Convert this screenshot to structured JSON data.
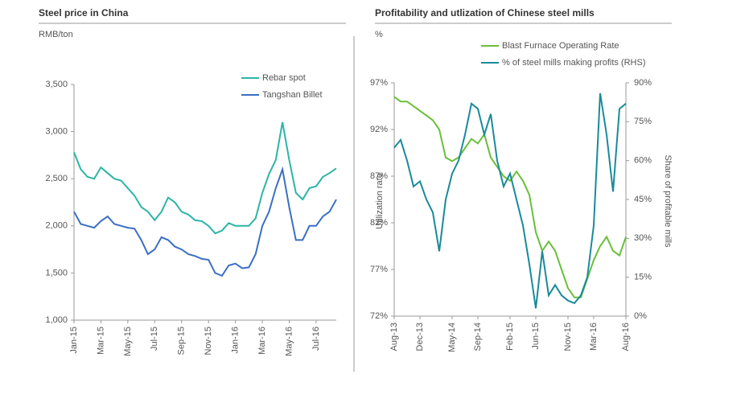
{
  "chart_data": [
    {
      "type": "line",
      "title": "Steel price in China",
      "y_label": "RMB/ton",
      "categories": [
        "Jan-15",
        null,
        null,
        null,
        "Mar-15",
        null,
        null,
        null,
        "May-15",
        null,
        null,
        null,
        "Jul-15",
        null,
        null,
        null,
        "Sep-15",
        null,
        null,
        null,
        "Nov-15",
        null,
        null,
        null,
        "Jan-16",
        null,
        null,
        null,
        "Mar-16",
        null,
        null,
        null,
        "May-16",
        null,
        null,
        null,
        "Jul-16",
        null,
        null,
        null
      ],
      "series": [
        {
          "name": "Rebar spot",
          "color": "#2bb5a6",
          "values": [
            2780,
            2600,
            2520,
            2500,
            2620,
            2560,
            2500,
            2480,
            2400,
            2320,
            2200,
            2150,
            2060,
            2150,
            2300,
            2250,
            2150,
            2120,
            2060,
            2050,
            2000,
            1920,
            1950,
            2030,
            2000,
            2000,
            2000,
            2080,
            2350,
            2550,
            2700,
            3100,
            2700,
            2350,
            2280,
            2400,
            2420,
            2520,
            2560,
            2610
          ]
        },
        {
          "name": "Tangshan Billet",
          "color": "#3a6fc4",
          "values": [
            2150,
            2020,
            2000,
            1980,
            2050,
            2100,
            2020,
            2000,
            1980,
            1970,
            1850,
            1700,
            1750,
            1880,
            1850,
            1780,
            1750,
            1700,
            1680,
            1650,
            1640,
            1500,
            1470,
            1580,
            1600,
            1550,
            1560,
            1700,
            2000,
            2150,
            2400,
            2600,
            2200,
            1850,
            1850,
            2000,
            2000,
            2100,
            2150,
            2280
          ]
        }
      ],
      "ylim": [
        1000,
        3500
      ],
      "yticks": [
        {
          "value": 1000,
          "label": "1,000"
        },
        {
          "value": 1500,
          "label": "1,500"
        },
        {
          "value": 2000,
          "label": "2,000"
        },
        {
          "value": 2500,
          "label": "2,500"
        },
        {
          "value": 3000,
          "label": "3,000"
        },
        {
          "value": 3500,
          "label": "3,500"
        }
      ]
    },
    {
      "type": "line",
      "title": "Profitability and utlization of Chinese steel mills",
      "y_label": "%",
      "y_axis_title": "Utilization rate",
      "y2_axis_title": "Share of profitable mills",
      "categories": [
        "Aug-13",
        null,
        null,
        null,
        "Dec-13",
        null,
        null,
        null,
        null,
        "May-14",
        null,
        null,
        null,
        "Sep-14",
        null,
        null,
        null,
        null,
        "Feb-15",
        null,
        null,
        null,
        "Jun-15",
        null,
        null,
        null,
        null,
        "Nov-15",
        null,
        null,
        null,
        "Mar-16",
        null,
        null,
        null,
        null,
        "Aug-16"
      ],
      "series": [
        {
          "name": "Blast Furnace Operating Rate",
          "color": "#6abf3a",
          "values": [
            95.5,
            95,
            95,
            94.5,
            94,
            93.5,
            93,
            92,
            89,
            88.6,
            89,
            90,
            91,
            90.5,
            91.5,
            89,
            88,
            87,
            86.5,
            87.5,
            86.5,
            85,
            81,
            79,
            80,
            79,
            77,
            75,
            74,
            74,
            76,
            78,
            79.5,
            80.5,
            79,
            78.5,
            80.5
          ]
        },
        {
          "name": "% of steel mills making profits (RHS)",
          "color": "#1a8a9a",
          "axis": "y2",
          "values": [
            65,
            68,
            60,
            50,
            52,
            45,
            40,
            25,
            45,
            55,
            60,
            70,
            82,
            80,
            70,
            78,
            60,
            50,
            55,
            45,
            35,
            20,
            3,
            25,
            8,
            12,
            8,
            6,
            5,
            8,
            15,
            35,
            86,
            70,
            48,
            80,
            82
          ]
        }
      ],
      "ylim": [
        72,
        97
      ],
      "yticks": [
        {
          "value": 72,
          "label": "72%"
        },
        {
          "value": 77,
          "label": "77%"
        },
        {
          "value": 82,
          "label": "82%"
        },
        {
          "value": 87,
          "label": "87%"
        },
        {
          "value": 92,
          "label": "92%"
        },
        {
          "value": 97,
          "label": "97%"
        }
      ],
      "y2lim": [
        0,
        90
      ],
      "y2ticks": [
        {
          "value": 0,
          "label": "0%"
        },
        {
          "value": 15,
          "label": "15%"
        },
        {
          "value": 30,
          "label": "30%"
        },
        {
          "value": 45,
          "label": "45%"
        },
        {
          "value": 60,
          "label": "60%"
        },
        {
          "value": 75,
          "label": "75%"
        },
        {
          "value": 90,
          "label": "90%"
        }
      ]
    }
  ]
}
